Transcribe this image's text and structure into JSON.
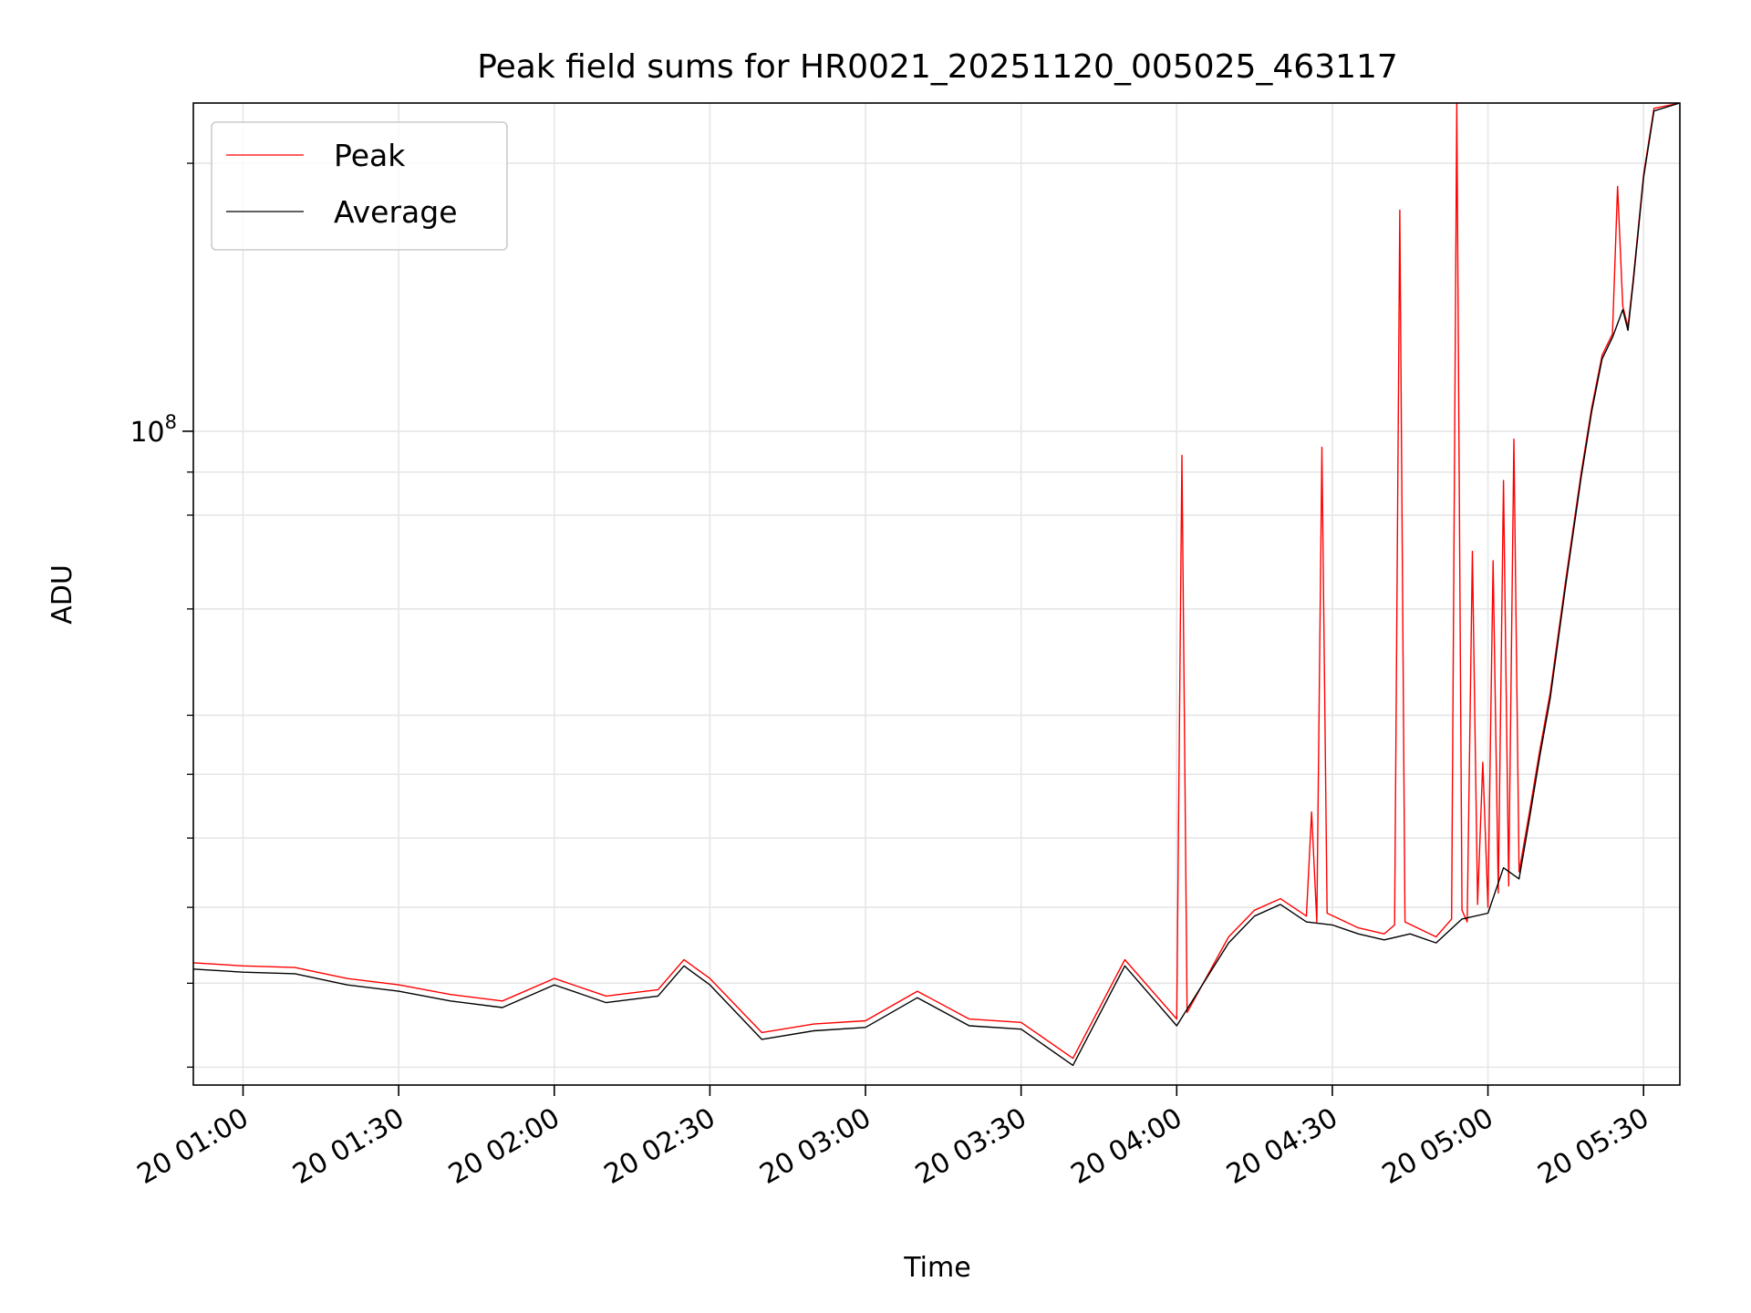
{
  "chart_data": {
    "type": "line",
    "title": "Peak field sums for HR0021_20251120_005025_463117",
    "xlabel": "Time",
    "ylabel": "ADU",
    "yscale": "log",
    "xlim": [
      "20 00:50:25",
      "20 05:37:00"
    ],
    "ylim": [
      44000000,
      151000000
    ],
    "grid": "both",
    "legend_position": "upper-left",
    "x_ticks": [
      "20 01:00",
      "20 01:30",
      "20 02:00",
      "20 02:30",
      "20 03:00",
      "20 03:30",
      "20 04:00",
      "20 04:30",
      "20 05:00",
      "20 05:30"
    ],
    "y_major_tick": {
      "value": 100000000,
      "base": "10",
      "exponent": "8"
    },
    "y_minor_ticks": [
      45000000,
      50000000,
      55000000,
      60000000,
      65000000,
      70000000,
      80000000,
      90000000,
      95000000,
      140000000
    ],
    "series": [
      {
        "name": "Peak",
        "color": "#ff0000",
        "points": [
          [
            "20 00:50:25",
            51300000
          ],
          [
            "20 01:00",
            51100000
          ],
          [
            "20 01:10",
            51000000
          ],
          [
            "20 01:20",
            50300000
          ],
          [
            "20 01:30",
            49900000
          ],
          [
            "20 01:40",
            49300000
          ],
          [
            "20 01:50",
            48900000
          ],
          [
            "20 02:00",
            50300000
          ],
          [
            "20 02:10",
            49200000
          ],
          [
            "20 02:20",
            49600000
          ],
          [
            "20 02:25",
            51500000
          ],
          [
            "20 02:30",
            50300000
          ],
          [
            "20 02:40",
            47000000
          ],
          [
            "20 02:50",
            47500000
          ],
          [
            "20 03:00",
            47700000
          ],
          [
            "20 03:10",
            49500000
          ],
          [
            "20 03:20",
            47800000
          ],
          [
            "20 03:30",
            47600000
          ],
          [
            "20 03:40",
            45500000
          ],
          [
            "20 03:50",
            51500000
          ],
          [
            "20 04:00",
            47800000
          ],
          [
            "20 04:01",
            97000000
          ],
          [
            "20 04:02",
            48200000
          ],
          [
            "20 04:10",
            53000000
          ],
          [
            "20 04:15",
            54800000
          ],
          [
            "20 04:20",
            55600000
          ],
          [
            "20 04:25",
            54400000
          ],
          [
            "20 04:26",
            62000000
          ],
          [
            "20 04:27",
            54000000
          ],
          [
            "20 04:28",
            98000000
          ],
          [
            "20 04:29",
            54600000
          ],
          [
            "20 04:35",
            53600000
          ],
          [
            "20 04:40",
            53200000
          ],
          [
            "20 04:42",
            53800000
          ],
          [
            "20 04:43",
            132000000
          ],
          [
            "20 04:44",
            54000000
          ],
          [
            "20 04:50",
            53000000
          ],
          [
            "20 04:53",
            54200000
          ],
          [
            "20 04:54",
            151000000
          ],
          [
            "20 04:55",
            54800000
          ],
          [
            "20 04:56",
            54000000
          ],
          [
            "20 04:57",
            86000000
          ],
          [
            "20 04:58",
            55200000
          ],
          [
            "20 04:59",
            66000000
          ],
          [
            "20 05:00",
            55000000
          ],
          [
            "20 05:01",
            85000000
          ],
          [
            "20 05:02",
            56000000
          ],
          [
            "20 05:03",
            94000000
          ],
          [
            "20 05:04",
            56500000
          ],
          [
            "20 05:05",
            99000000
          ],
          [
            "20 05:06",
            57500000
          ],
          [
            "20 05:08",
            62000000
          ],
          [
            "20 05:10",
            67000000
          ],
          [
            "20 05:12",
            72000000
          ],
          [
            "20 05:15",
            83000000
          ],
          [
            "20 05:18",
            95000000
          ],
          [
            "20 05:20",
            103000000
          ],
          [
            "20 05:22",
            110000000
          ],
          [
            "20 05:24",
            113000000
          ],
          [
            "20 05:25",
            136000000
          ],
          [
            "20 05:26",
            117000000
          ],
          [
            "20 05:27",
            114000000
          ],
          [
            "20 05:28",
            121000000
          ],
          [
            "20 05:30",
            138000000
          ],
          [
            "20 05:32",
            150000000
          ],
          [
            "20 05:37",
            151000000
          ]
        ]
      },
      {
        "name": "Average",
        "color": "#000000",
        "points": [
          [
            "20 00:50:25",
            50900000
          ],
          [
            "20 01:00",
            50700000
          ],
          [
            "20 01:10",
            50600000
          ],
          [
            "20 01:20",
            49900000
          ],
          [
            "20 01:30",
            49500000
          ],
          [
            "20 01:40",
            48900000
          ],
          [
            "20 01:50",
            48500000
          ],
          [
            "20 02:00",
            49900000
          ],
          [
            "20 02:10",
            48800000
          ],
          [
            "20 02:20",
            49200000
          ],
          [
            "20 02:25",
            51100000
          ],
          [
            "20 02:30",
            49900000
          ],
          [
            "20 02:40",
            46600000
          ],
          [
            "20 02:50",
            47100000
          ],
          [
            "20 03:00",
            47300000
          ],
          [
            "20 03:10",
            49100000
          ],
          [
            "20 03:20",
            47400000
          ],
          [
            "20 03:30",
            47200000
          ],
          [
            "20 03:40",
            45100000
          ],
          [
            "20 03:50",
            51100000
          ],
          [
            "20 04:00",
            47400000
          ],
          [
            "20 04:10",
            52600000
          ],
          [
            "20 04:15",
            54400000
          ],
          [
            "20 04:20",
            55200000
          ],
          [
            "20 04:25",
            54000000
          ],
          [
            "20 04:30",
            53800000
          ],
          [
            "20 04:35",
            53200000
          ],
          [
            "20 04:40",
            52800000
          ],
          [
            "20 04:45",
            53200000
          ],
          [
            "20 04:50",
            52600000
          ],
          [
            "20 04:55",
            54200000
          ],
          [
            "20 05:00",
            54600000
          ],
          [
            "20 05:03",
            57800000
          ],
          [
            "20 05:06",
            57000000
          ],
          [
            "20 05:08",
            61500000
          ],
          [
            "20 05:10",
            66500000
          ],
          [
            "20 05:12",
            71500000
          ],
          [
            "20 05:15",
            82500000
          ],
          [
            "20 05:18",
            94500000
          ],
          [
            "20 05:20",
            102500000
          ],
          [
            "20 05:22",
            109500000
          ],
          [
            "20 05:24",
            112500000
          ],
          [
            "20 05:26",
            116500000
          ],
          [
            "20 05:27",
            113500000
          ],
          [
            "20 05:28",
            120500000
          ],
          [
            "20 05:30",
            137500000
          ],
          [
            "20 05:32",
            149500000
          ],
          [
            "20 05:37",
            151000000
          ]
        ]
      }
    ]
  }
}
